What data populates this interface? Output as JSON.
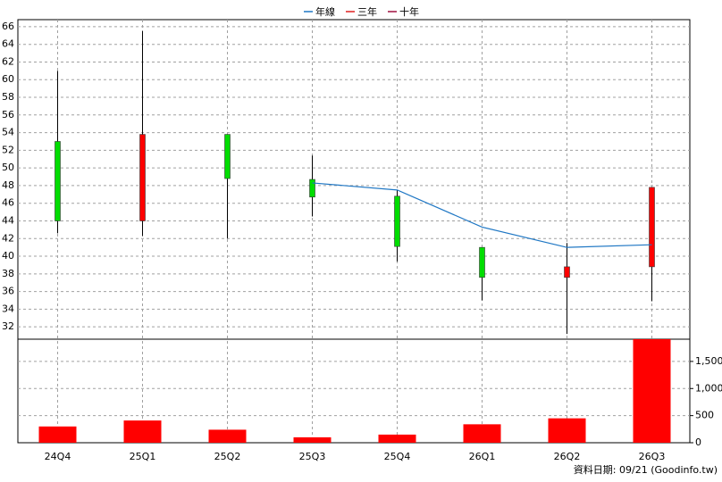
{
  "chart_data": [
    {
      "type": "candlestick",
      "open": [
        53,
        44,
        53.8,
        48.7,
        46.8,
        41,
        37.6,
        38.8
      ],
      "high": [
        61,
        65.5,
        53.8,
        51.4,
        47.5,
        41,
        41.5,
        47.8
      ],
      "low": [
        42.6,
        42.3,
        42,
        44.5,
        39.4,
        35,
        31.2,
        34.9
      ],
      "close": [
        44,
        53.8,
        48.8,
        46.7,
        41.1,
        37.6,
        38.8,
        47.8
      ],
      "up_color": "#ff0000",
      "down_color": "#00dd00",
      "series": [
        {
          "name": "年線",
          "color": "#1f77c4",
          "values": [
            null,
            null,
            null,
            48.3,
            47.5,
            43.3,
            41,
            41.3
          ]
        },
        {
          "name": "三年",
          "color": "#e02020",
          "values": [
            null,
            null,
            null,
            null,
            null,
            null,
            null,
            null
          ]
        },
        {
          "name": "十年",
          "color": "#a01040",
          "values": [
            null,
            null,
            null,
            null,
            null,
            null,
            null,
            null
          ]
        }
      ],
      "ylim": [
        30.6,
        66.8
      ],
      "yticks": [
        32,
        34,
        36,
        38,
        40,
        42,
        44,
        46,
        48,
        50,
        52,
        54,
        56,
        58,
        60,
        62,
        64,
        66
      ],
      "grid": true,
      "legend": "top"
    },
    {
      "type": "bar",
      "categories": [
        "24Q4",
        "25Q1",
        "25Q2",
        "25Q3",
        "25Q4",
        "26Q1",
        "26Q2",
        "26Q3"
      ],
      "values": [
        300,
        410,
        240,
        100,
        150,
        340,
        450,
        1910
      ],
      "color": "#ff0000",
      "ylim": [
        0,
        1910
      ],
      "yticks": [
        0,
        500,
        {
          "value": 1000,
          "label": "1,000"
        },
        {
          "value": 1500,
          "label": "1,500"
        }
      ],
      "grid": true
    }
  ],
  "footer": "資料日期: 09/21  (Goodinfo.tw)"
}
